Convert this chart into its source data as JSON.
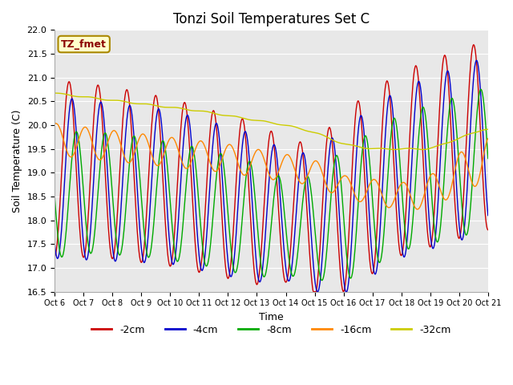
{
  "title": "Tonzi Soil Temperatures Set C",
  "ylabel": "Soil Temperature (C)",
  "xlabel": "Time",
  "annotation": "TZ_fmet",
  "ylim": [
    16.5,
    22.0
  ],
  "yticks": [
    16.5,
    17.0,
    17.5,
    18.0,
    18.5,
    19.0,
    19.5,
    20.0,
    20.5,
    21.0,
    21.5,
    22.0
  ],
  "xtick_labels": [
    "Oct 6",
    "Oct 7",
    "Oct 8",
    "Oct 9",
    "Oct 10",
    "Oct 11",
    "Oct 12",
    "Oct 13",
    "Oct 14",
    "Oct 15",
    "Oct 16",
    "Oct 17",
    "Oct 18",
    "Oct 19",
    "Oct 20",
    "Oct 21"
  ],
  "colors": {
    "-2cm": "#cc0000",
    "-4cm": "#0000cc",
    "-8cm": "#00aa00",
    "-16cm": "#ff8800",
    "-32cm": "#cccc00"
  },
  "background_color": "#e8e8e8",
  "title_fontsize": 12,
  "axis_fontsize": 9,
  "linewidth": 1.0
}
